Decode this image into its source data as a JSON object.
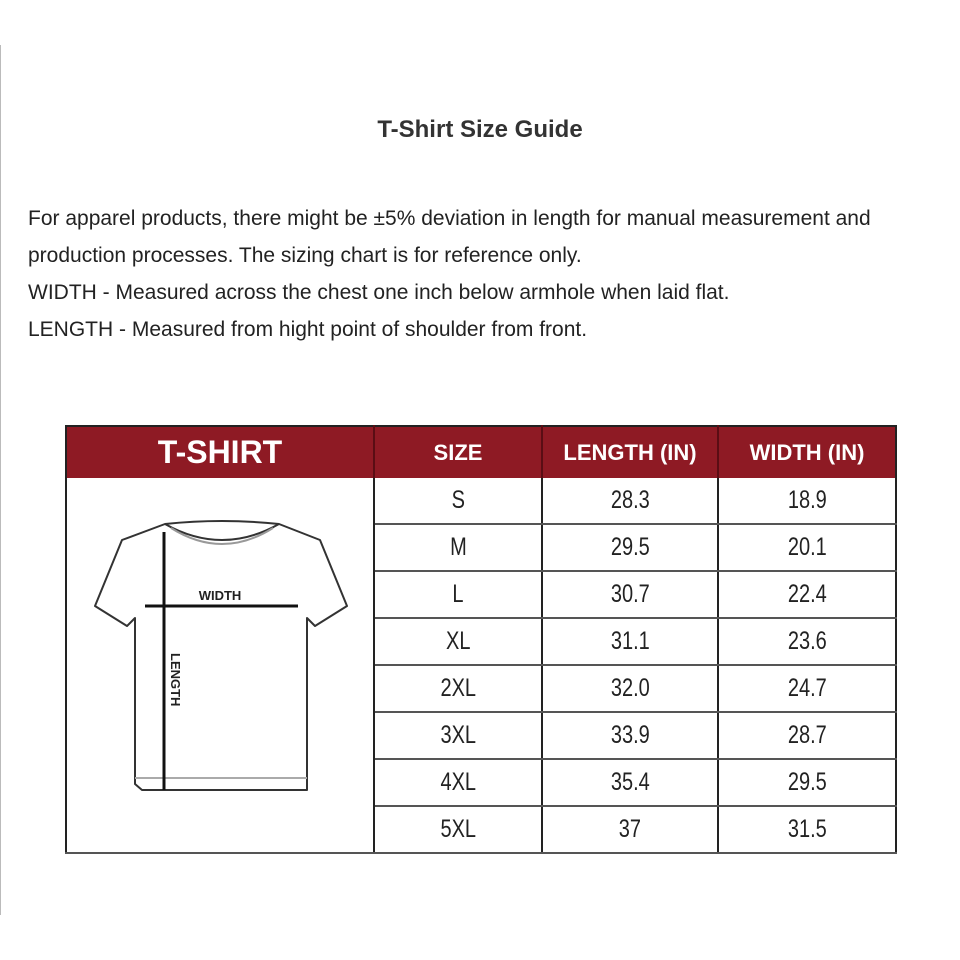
{
  "title": "T-Shirt Size Guide",
  "paragraphs": [
    "For apparel products, there might be ±5% deviation in length for manual measurement and production processes. The sizing chart is for reference only.",
    "WIDTH - Measured across the chest one inch below armhole when laid flat.",
    "LENGTH - Measured from hight point of shoulder from front."
  ],
  "table": {
    "header_color": "#8e1a24",
    "headers": [
      "T-SHIRT",
      "SIZE",
      "LENGTH (IN)",
      "WIDTH (IN)"
    ],
    "diagram": {
      "icon": "t-shirt-outline-icon",
      "width_label": "WIDTH",
      "length_label": "LENGTH"
    },
    "rows": [
      [
        "S",
        "28.3",
        "18.9"
      ],
      [
        "M",
        "29.5",
        "20.1"
      ],
      [
        "L",
        "30.7",
        "22.4"
      ],
      [
        "XL",
        "31.1",
        "23.6"
      ],
      [
        "2XL",
        "32.0",
        "24.7"
      ],
      [
        "3XL",
        "33.9",
        "28.7"
      ],
      [
        "4XL",
        "35.4",
        "29.5"
      ],
      [
        "5XL",
        "37",
        "31.5"
      ]
    ]
  }
}
